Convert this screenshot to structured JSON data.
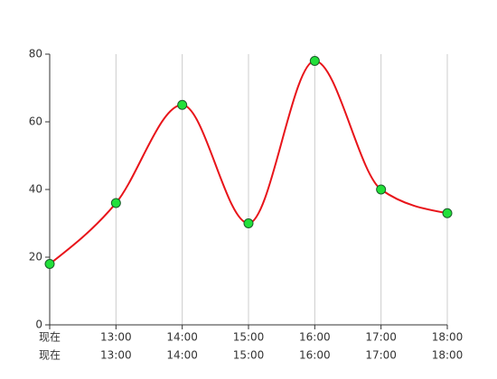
{
  "chart_data": {
    "type": "line",
    "categories": [
      "现在",
      "13:00",
      "14:00",
      "15:00",
      "16:00",
      "17:00",
      "18:00"
    ],
    "categories_row2": [
      "现在",
      "13:00",
      "14:00",
      "15:00",
      "16:00",
      "17:00",
      "18:00"
    ],
    "series": [
      {
        "color": "#e8141a",
        "marker_color": "#22e03a",
        "values": [
          18,
          36,
          65,
          30,
          78,
          40,
          33
        ]
      }
    ],
    "ylim": [
      0,
      80
    ],
    "yticks": [
      0,
      20,
      40,
      60,
      80
    ],
    "grid": true
  }
}
